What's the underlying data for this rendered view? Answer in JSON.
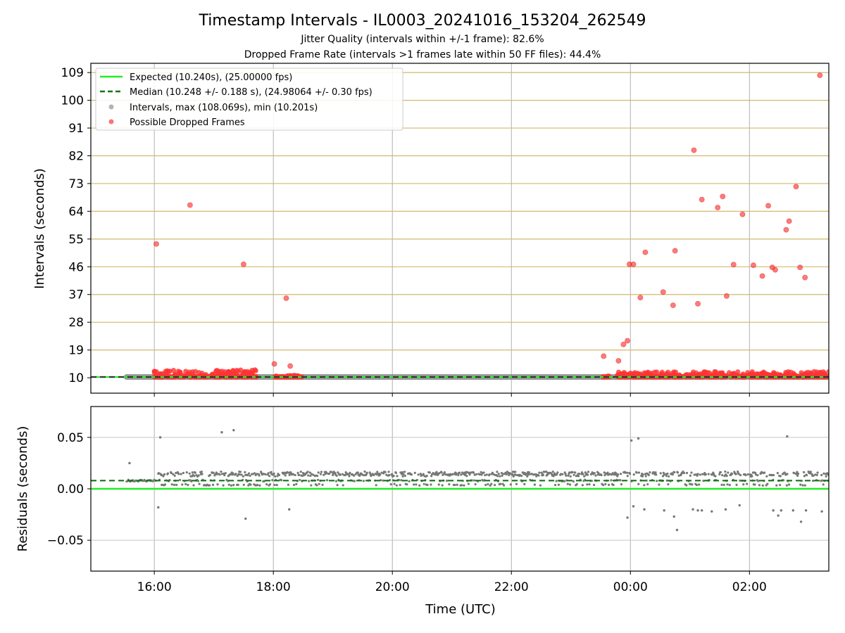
{
  "chart_data": [
    {
      "type": "scatter",
      "title": "Timestamp Intervals - IL0003_20241016_153204_262549",
      "subtitle_1": "Jitter Quality (intervals within +/-1 frame): 82.6%",
      "subtitle_2": "Dropped Frame Rate (intervals >1 frames late within 50 FF files): 44.4%",
      "xlabel": "",
      "ylabel": "Intervals (seconds)",
      "xlim": [
        "2024-10-16 14:56",
        "2024-10-17 03:20"
      ],
      "ylim": [
        5,
        112
      ],
      "yticks": [
        10,
        19,
        28,
        37,
        46,
        55,
        64,
        73,
        82,
        91,
        100,
        109
      ],
      "legend_position": "upper-left",
      "legend": [
        {
          "label": "Expected (10.240s), (25.00000 fps)",
          "style": "solid-line",
          "color": "#22ee22"
        },
        {
          "label": "Median (10.248 +/- 0.188 s), (24.98064 +/- 0.30 fps)",
          "style": "dashed-line",
          "color": "#117711"
        },
        {
          "label": "Intervals, max (108.069s), min (10.201s)",
          "style": "marker",
          "color": "#999999"
        },
        {
          "label": "Possible Dropped Frames",
          "style": "marker",
          "color": "#ff4444"
        }
      ],
      "expected": 10.24,
      "median": 10.248,
      "intervals_range": {
        "start": "2024-10-16 15:32",
        "end": "2024-10-17 03:20",
        "value": 10.24
      },
      "dropped_frames": [
        {
          "t": "2024-10-16 16:02",
          "y": 53.4
        },
        {
          "t": "2024-10-16 16:36",
          "y": 66.0
        },
        {
          "t": "2024-10-16 17:30",
          "y": 46.8
        },
        {
          "t": "2024-10-16 18:01",
          "y": 14.5
        },
        {
          "t": "2024-10-16 18:13",
          "y": 35.8
        },
        {
          "t": "2024-10-16 18:17",
          "y": 13.8
        },
        {
          "t": "2024-10-16 23:33",
          "y": 17.0
        },
        {
          "t": "2024-10-16 23:48",
          "y": 15.5
        },
        {
          "t": "2024-10-16 23:53",
          "y": 20.8
        },
        {
          "t": "2024-10-16 23:57",
          "y": 22.0
        },
        {
          "t": "2024-10-16 23:59",
          "y": 46.8
        },
        {
          "t": "2024-10-17 00:03",
          "y": 46.8
        },
        {
          "t": "2024-10-17 00:10",
          "y": 36.0
        },
        {
          "t": "2024-10-17 00:15",
          "y": 50.7
        },
        {
          "t": "2024-10-17 00:33",
          "y": 37.8
        },
        {
          "t": "2024-10-17 00:43",
          "y": 33.5
        },
        {
          "t": "2024-10-17 00:45",
          "y": 51.2
        },
        {
          "t": "2024-10-17 01:04",
          "y": 83.8
        },
        {
          "t": "2024-10-17 01:08",
          "y": 34.0
        },
        {
          "t": "2024-10-17 01:12",
          "y": 67.8
        },
        {
          "t": "2024-10-17 01:28",
          "y": 65.2
        },
        {
          "t": "2024-10-17 01:33",
          "y": 68.8
        },
        {
          "t": "2024-10-17 01:37",
          "y": 36.5
        },
        {
          "t": "2024-10-17 01:44",
          "y": 46.7
        },
        {
          "t": "2024-10-17 01:53",
          "y": 63.0
        },
        {
          "t": "2024-10-17 02:04",
          "y": 46.5
        },
        {
          "t": "2024-10-17 02:13",
          "y": 43.0
        },
        {
          "t": "2024-10-17 02:19",
          "y": 65.8
        },
        {
          "t": "2024-10-17 02:23",
          "y": 45.8
        },
        {
          "t": "2024-10-17 02:26",
          "y": 45.0
        },
        {
          "t": "2024-10-17 02:37",
          "y": 58.0
        },
        {
          "t": "2024-10-17 02:40",
          "y": 60.8
        },
        {
          "t": "2024-10-17 02:47",
          "y": 72.0
        },
        {
          "t": "2024-10-17 02:51",
          "y": 45.8
        },
        {
          "t": "2024-10-17 02:56",
          "y": 42.5
        },
        {
          "t": "2024-10-17 03:11",
          "y": 108.1
        }
      ],
      "dropped_clusters": [
        {
          "start": "2024-10-16 16:00",
          "end": "2024-10-16 17:43",
          "y_min": 10.24,
          "y_max": 12.6
        },
        {
          "start": "2024-10-16 18:00",
          "end": "2024-10-16 18:29",
          "y_min": 10.24,
          "y_max": 10.8
        },
        {
          "start": "2024-10-16 23:32",
          "end": "2024-10-16 23:39",
          "y_min": 10.24,
          "y_max": 10.6
        },
        {
          "start": "2024-10-16 23:47",
          "end": "2024-10-17 03:20",
          "y_min": 10.24,
          "y_max": 12.0
        }
      ]
    },
    {
      "type": "scatter",
      "xlabel": "Time (UTC)",
      "ylabel": "Residuals (seconds)",
      "xlim": [
        "2024-10-16 14:56",
        "2024-10-17 03:20"
      ],
      "ylim": [
        -0.08,
        0.08
      ],
      "yticks": [
        0.05,
        0.0,
        -0.05
      ],
      "ytick_labels": [
        "0.05",
        "0.00",
        "−0.05"
      ],
      "xticks": [
        "16:00",
        "18:00",
        "20:00",
        "22:00",
        "00:00",
        "02:00"
      ],
      "expected": 0.0,
      "median": 0.008,
      "band": {
        "start": "2024-10-16 15:32",
        "end": "2024-10-17 03:20",
        "lower": 0.0,
        "upper": 0.016
      },
      "outliers": [
        {
          "t": "2024-10-16 15:35",
          "y": 0.025
        },
        {
          "t": "2024-10-16 16:04",
          "y": -0.018
        },
        {
          "t": "2024-10-16 16:06",
          "y": 0.05
        },
        {
          "t": "2024-10-16 17:08",
          "y": 0.055
        },
        {
          "t": "2024-10-16 17:20",
          "y": 0.057
        },
        {
          "t": "2024-10-16 17:32",
          "y": -0.029
        },
        {
          "t": "2024-10-16 18:16",
          "y": -0.02
        },
        {
          "t": "2024-10-16 23:57",
          "y": -0.028
        },
        {
          "t": "2024-10-17 00:01",
          "y": 0.047
        },
        {
          "t": "2024-10-17 00:03",
          "y": -0.017
        },
        {
          "t": "2024-10-17 00:08",
          "y": 0.049
        },
        {
          "t": "2024-10-17 00:14",
          "y": -0.02
        },
        {
          "t": "2024-10-17 00:34",
          "y": -0.021
        },
        {
          "t": "2024-10-17 00:44",
          "y": -0.027
        },
        {
          "t": "2024-10-17 00:47",
          "y": -0.04
        },
        {
          "t": "2024-10-17 01:03",
          "y": -0.02
        },
        {
          "t": "2024-10-17 01:08",
          "y": -0.021
        },
        {
          "t": "2024-10-17 01:12",
          "y": -0.021
        },
        {
          "t": "2024-10-17 01:22",
          "y": -0.022
        },
        {
          "t": "2024-10-17 01:36",
          "y": -0.02
        },
        {
          "t": "2024-10-17 01:50",
          "y": -0.016
        },
        {
          "t": "2024-10-17 02:24",
          "y": -0.021
        },
        {
          "t": "2024-10-17 02:29",
          "y": -0.026
        },
        {
          "t": "2024-10-17 02:32",
          "y": -0.021
        },
        {
          "t": "2024-10-17 02:38",
          "y": 0.051
        },
        {
          "t": "2024-10-17 02:44",
          "y": -0.021
        },
        {
          "t": "2024-10-17 02:52",
          "y": -0.032
        },
        {
          "t": "2024-10-17 02:57",
          "y": -0.021
        },
        {
          "t": "2024-10-17 03:13",
          "y": -0.022
        }
      ]
    }
  ],
  "colors": {
    "expected": "#22ee22",
    "median": "#117711",
    "interval": "#888888",
    "dropped": "#ff3333",
    "residual": "#777777",
    "grid_top": "#d2b96e"
  }
}
